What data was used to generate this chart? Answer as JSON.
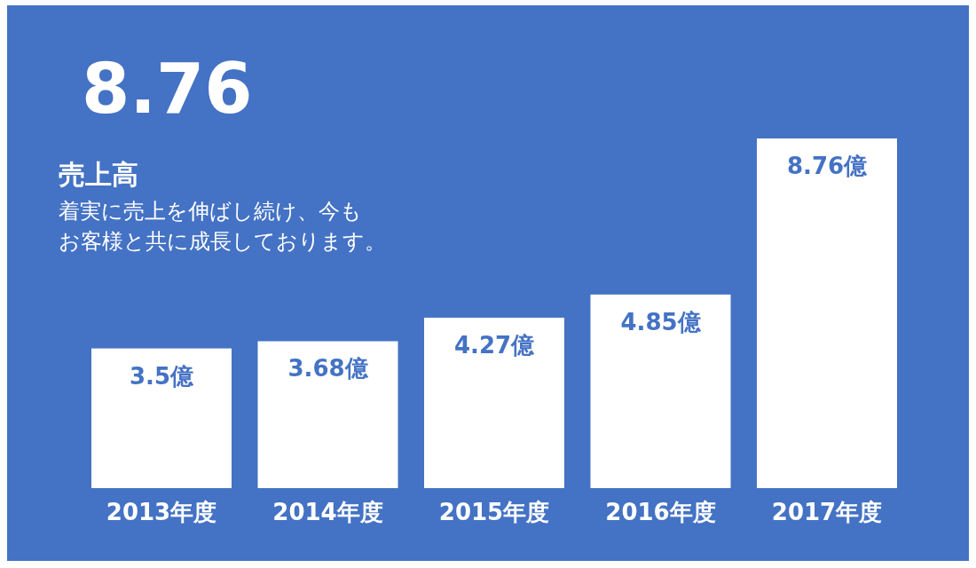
{
  "chart_data": {
    "type": "bar",
    "title": "8.76",
    "subtitle": "売上高",
    "annotations": [
      "着実に売上を伸ばし続け、今も",
      "お客様と共に成長しております。"
    ],
    "categories": [
      "2013年度",
      "2014年度",
      "2015年度",
      "2016年度",
      "2017年度"
    ],
    "values": [
      3.5,
      3.68,
      4.27,
      4.85,
      8.76
    ],
    "value_labels": [
      "3.5億",
      "3.68億",
      "4.27億",
      "4.85億",
      "8.76億"
    ],
    "color": "#ffffff"
  }
}
